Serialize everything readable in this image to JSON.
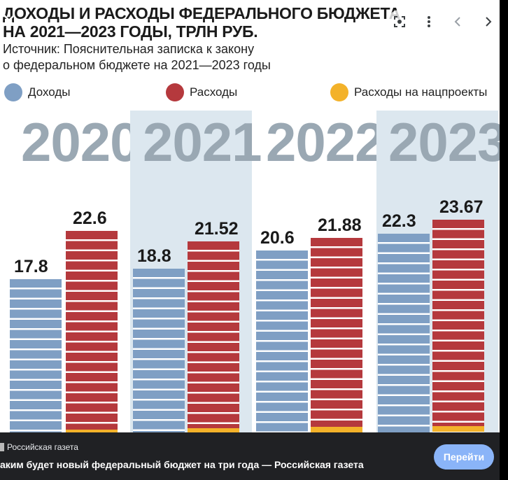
{
  "infographic": {
    "title_line1": "ДОХОДЫ И РАСХОДЫ ФЕДЕРАЛЬНОГО БЮДЖЕТА",
    "title_line2": "НА 2021—2023 ГОДЫ, ТРЛН РУБ.",
    "source_line1": "Источник: Пояснительная записка к закону",
    "source_line2": "о федеральном бюджете на 2021—2023 годы",
    "legend": [
      {
        "label": "Доходы",
        "color": "#7f9fc4"
      },
      {
        "label": "Расходы",
        "color": "#b5393d"
      },
      {
        "label": "Расходы на нацпроекты",
        "color": "#f3b22a"
      }
    ]
  },
  "chart_data": {
    "type": "bar",
    "categories": [
      "2020",
      "2021",
      "2022",
      "2023"
    ],
    "series": [
      {
        "name": "Доходы",
        "values": [
          17.8,
          18.8,
          20.6,
          22.3
        ],
        "color": "#7f9fc4"
      },
      {
        "name": "Расходы",
        "values": [
          22.6,
          21.52,
          21.88,
          23.67
        ],
        "color": "#b5393d"
      },
      {
        "name": "Расходы на нацпроекты",
        "values": [
          0.6,
          0.9,
          1.2,
          1.4
        ],
        "color": "#f3b22a"
      }
    ],
    "data_labels": {
      "income": [
        "17.8",
        "18.8",
        "20.6",
        "22.3"
      ],
      "expenses": [
        "22.6",
        "21.52",
        "21.88",
        "23.67"
      ]
    }
  },
  "viewer": {
    "close_icon": "close-icon",
    "lens_icon": "lens-icon",
    "more_icon": "more-vert-icon",
    "prev_icon": "chevron-left-icon",
    "next_icon": "chevron-right-icon",
    "source_name": "Российская газета",
    "page_title": "аким будет новый федеральный бюджет на три года — Российская газета",
    "visit_button": "Перейти"
  }
}
